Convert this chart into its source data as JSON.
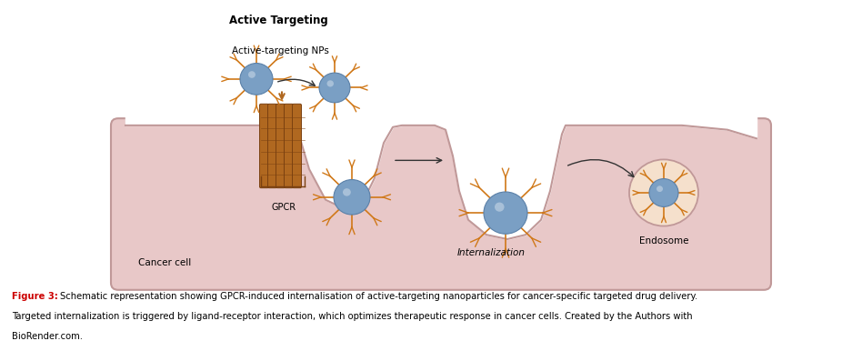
{
  "title": "Active Targeting",
  "title_fontsize": 8.5,
  "title_bold": true,
  "cell_color": "#e8c8c8",
  "cell_edge_color": "#c09898",
  "caption_bold": "Figure 3:",
  "caption_line1_rest": " Schematic representation showing GPCR-induced internalisation of active-targeting nanoparticles for cancer-specific targeted drug delivery.",
  "caption_line2": "Targeted internalization is triggered by ligand-receptor interaction, which optimizes therapeutic response in cancer cells. Created by the Authors with",
  "caption_line3": "BioRender.com.",
  "caption_color_bold": "#cc0000",
  "caption_color_normal": "#000000",
  "caption_fontsize": 7.2,
  "np_body_color": "#7a9fc4",
  "np_spike_color": "#d07818",
  "label_active_targeting": "Active-targeting NPs",
  "label_gpcr": "GPCR",
  "label_internalization": "Internalization",
  "label_endosome": "Endosome",
  "label_cancer_cell": "Cancer cell",
  "bg_color": "#ffffff",
  "gpcr_color": "#b06820",
  "gpcr_edge_color": "#7a4010"
}
